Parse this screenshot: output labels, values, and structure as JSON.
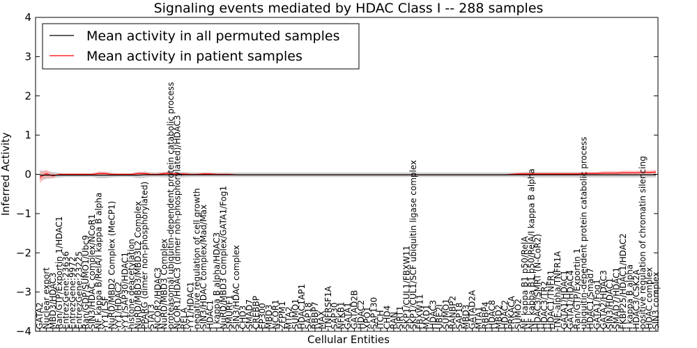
{
  "chart_data": {
    "type": "line",
    "title": "Signaling events mediated by HDAC Class I -- 288 samples",
    "xlabel": "Cellular Entities",
    "ylabel": "Inferred Activity",
    "ylim": [
      -4,
      4
    ],
    "yticks": [
      -4,
      -3,
      -2,
      -1,
      0,
      1,
      2,
      3,
      4
    ],
    "ytick_labels": [
      "−4",
      "−3",
      "−2",
      "−1",
      "0",
      "1",
      "2",
      "3",
      "4"
    ],
    "legend": {
      "placement": "top-left",
      "entries": [
        {
          "label": "Mean activity in all permuted samples",
          "color": "#000000"
        },
        {
          "label": "Mean activity in patient samples",
          "color": "#ff0000"
        }
      ]
    },
    "colors": {
      "permuted_line": "#000000",
      "permuted_band": "#c8c8c8",
      "patient_line": "#ff0000",
      "patient_band": "#ff9999"
    },
    "categories": [
      "GATA2",
      "Nuclear export",
      "MBD3/HDAC3",
      "Ran/GTP/Exportin 1/HDAC1",
      "EntrezGene:23636",
      "EntrezGene:9972",
      "EntrezGene:23225",
      "Ran/GDP/SUMO1/Ubc9",
      "SIN3/HDAC complex/NCoR1",
      "NF kappa B/RelA/I kappa B alpha",
      "YY1/LSF",
      "NuRD/MBD2 Complex (MeCP1)",
      "YY1/HDAC2",
      "YY1/SAP30/HDAC1",
      "histone deacetylation",
      "NuRD/MBD3/MBD3L2 Complex",
      "PPARG (dimer non-phosphorylated)",
      "STAT3",
      "NCOR2/HDAC3",
      "NuRD/MBD3 Complex",
      "proteasomal ubiquitin-dependent protein catabolic process",
      "NCOR1/HDAC3 (dimer non-phosphorylated)/HDAC3",
      "RELA",
      "YY1/HDAC1",
      "negative regulation of cell growth",
      "SIN3/HDAC complex/Mad/Max",
      "HDAC1",
      "I kappa B alpha/HDAC3",
      "NuRD/MBD3 Complex/GATA1/Fog1",
      "SMURF1",
      "SIN3/HDAC complex",
      "CHD3",
      "SMAD7",
      "CREBBP",
      "EP300",
      "MBD3",
      "NCOR1",
      "ZFPM1",
      "MTA2",
      "SUMO1",
      "HDAC1AP1",
      "SAP18",
      "RBBP7",
      "MAX",
      "TNFRSF1A",
      "SAP30",
      "NFKB1",
      "GATA1",
      "GATAD2B",
      "HDAC2",
      "XPO1",
      "SAP130",
      "ITCH",
      "CHD4",
      "RAN",
      "SIRT1",
      "SKP1/CUL1/FBXW11",
      "SKP1/CUL1/SCF ubiquitin ligase complex",
      "FBXW11",
      "MXD1",
      "HDAC3",
      "UBE2I",
      "SUMO1",
      "RANBP2",
      "SAP18",
      "MBD3",
      "GATAD2A",
      "MTA1",
      "RBBP4",
      "HDAC8",
      "MBD2",
      "HDAC2",
      "PRKACA",
      "SUMO2",
      "NF kappa B1 p50/RelA",
      "NF kappa B1 p50/RelA/I kappa B alpha",
      "HDAC3/SMRT (N-CoR2)",
      "HDAC3/TR2",
      "HDAC1/TNFR1",
      "TNF-alpha/TNFR1A",
      "GATA1/HDAC1",
      "GATA1/HDAC4",
      "Ran/GTP/Exportin 1",
      "ubiquitin-dependent protein catabolic process",
      "HDAC1/Smad7",
      "GATA1/Fog1",
      "GATA2/HDAC3",
      "SIN3/HDAC1",
      "SMAD7/HDAC1",
      "FKBP25/HDAC1/HDAC2",
      "I kappa B alpha",
      "HDAC3/CSK2A",
      "positive regulation of chromatin silencing",
      "HDAC complex",
      "SIN3 complex"
    ],
    "series": [
      {
        "name": "Mean activity in all permuted samples",
        "values": [
          -0.02,
          -0.02,
          -0.02,
          -0.02,
          -0.02,
          -0.02,
          -0.02,
          -0.02,
          -0.02,
          -0.02,
          -0.02,
          -0.02,
          -0.02,
          -0.02,
          -0.02,
          -0.02,
          -0.01,
          -0.01,
          -0.01,
          -0.01,
          -0.01,
          -0.01,
          -0.01,
          -0.01,
          -0.01,
          -0.01,
          -0.01,
          -0.01,
          -0.01,
          -0.01,
          -0.01,
          -0.01,
          -0.01,
          -0.01,
          -0.01,
          -0.01,
          -0.01,
          -0.01,
          -0.01,
          -0.01,
          -0.01,
          -0.01,
          -0.01,
          -0.01,
          -0.01,
          -0.01,
          -0.01,
          -0.01,
          -0.01,
          -0.01,
          -0.01,
          -0.01,
          -0.01,
          -0.01,
          -0.01,
          -0.01,
          -0.01,
          -0.01,
          -0.01,
          -0.01,
          -0.01,
          -0.01,
          -0.01,
          -0.01,
          -0.01,
          -0.01,
          -0.01,
          -0.01,
          -0.01,
          -0.01,
          -0.01,
          -0.01,
          -0.01,
          -0.01,
          -0.01,
          -0.01,
          -0.01,
          -0.01,
          -0.01,
          -0.01,
          -0.01,
          -0.01,
          -0.01,
          -0.01,
          -0.01,
          -0.01,
          -0.01,
          -0.01,
          -0.01,
          -0.01,
          -0.01,
          -0.01,
          -0.01,
          -0.01,
          -0.01
        ],
        "band": [
          0.12,
          0.1,
          0.08,
          0.06,
          0.05,
          0.05,
          0.05,
          0.05,
          0.05,
          0.08,
          0.08,
          0.06,
          0.05,
          0.05,
          0.05,
          0.08,
          0.08,
          0.06,
          0.06,
          0.07,
          0.07,
          0.07,
          0.07,
          0.06,
          0.06,
          0.06,
          0.06,
          0.06,
          0.06,
          0.06,
          0.06,
          0.06,
          0.06,
          0.06,
          0.06,
          0.06,
          0.06,
          0.06,
          0.06,
          0.06,
          0.06,
          0.06,
          0.06,
          0.06,
          0.06,
          0.06,
          0.06,
          0.06,
          0.06,
          0.06,
          0.06,
          0.06,
          0.06,
          0.06,
          0.06,
          0.06,
          0.06,
          0.06,
          0.06,
          0.06,
          0.06,
          0.06,
          0.06,
          0.06,
          0.06,
          0.06,
          0.06,
          0.06,
          0.06,
          0.06,
          0.06,
          0.06,
          0.06,
          0.06,
          0.07,
          0.07,
          0.07,
          0.07,
          0.07,
          0.07,
          0.07,
          0.07,
          0.07,
          0.07,
          0.07,
          0.07,
          0.07,
          0.07,
          0.07,
          0.07,
          0.07,
          0.07,
          0.07,
          0.07,
          0.07
        ]
      },
      {
        "name": "Mean activity in patient samples",
        "values": [
          -0.08,
          0.02,
          -0.04,
          0.0,
          0.0,
          0.0,
          0.0,
          0.0,
          0.0,
          0.02,
          0.02,
          0.0,
          0.0,
          0.0,
          0.0,
          0.02,
          0.02,
          0.0,
          0.0,
          0.02,
          0.02,
          0.01,
          0.01,
          0.0,
          0.0,
          0.01,
          0.01,
          0.0,
          0.0,
          0.0,
          -0.01,
          -0.01,
          -0.01,
          -0.01,
          -0.01,
          -0.01,
          -0.01,
          -0.01,
          -0.01,
          -0.01,
          -0.01,
          -0.01,
          -0.01,
          -0.01,
          -0.01,
          -0.01,
          -0.01,
          -0.01,
          -0.01,
          -0.01,
          -0.01,
          -0.01,
          -0.01,
          -0.01,
          -0.01,
          -0.01,
          -0.01,
          -0.01,
          -0.01,
          -0.01,
          -0.01,
          -0.01,
          -0.01,
          -0.01,
          -0.01,
          -0.01,
          -0.01,
          -0.01,
          -0.01,
          -0.01,
          -0.01,
          -0.01,
          0.0,
          0.01,
          0.01,
          0.01,
          0.01,
          0.01,
          0.01,
          0.01,
          0.01,
          0.01,
          0.01,
          0.02,
          0.02,
          0.02,
          0.03,
          0.03,
          0.03,
          0.04,
          0.04,
          0.04,
          0.05,
          0.05,
          0.06
        ],
        "band": [
          0.14,
          0.1,
          0.06,
          0.02,
          0.02,
          0.02,
          0.02,
          0.02,
          0.02,
          0.05,
          0.05,
          0.03,
          0.02,
          0.02,
          0.02,
          0.04,
          0.04,
          0.03,
          0.03,
          0.04,
          0.04,
          0.03,
          0.03,
          0.02,
          0.02,
          0.03,
          0.03,
          0.02,
          0.02,
          0.02,
          0.01,
          0.01,
          0.01,
          0.01,
          0.01,
          0.01,
          0.01,
          0.01,
          0.01,
          0.01,
          0.01,
          0.01,
          0.01,
          0.01,
          0.01,
          0.01,
          0.01,
          0.01,
          0.01,
          0.01,
          0.01,
          0.01,
          0.01,
          0.01,
          0.01,
          0.01,
          0.01,
          0.01,
          0.01,
          0.01,
          0.01,
          0.01,
          0.01,
          0.01,
          0.01,
          0.01,
          0.01,
          0.01,
          0.01,
          0.01,
          0.01,
          0.01,
          0.02,
          0.03,
          0.04,
          0.04,
          0.03,
          0.03,
          0.03,
          0.03,
          0.03,
          0.03,
          0.03,
          0.04,
          0.04,
          0.04,
          0.05,
          0.05,
          0.05,
          0.05,
          0.05,
          0.05,
          0.05,
          0.05,
          0.05
        ]
      }
    ]
  }
}
